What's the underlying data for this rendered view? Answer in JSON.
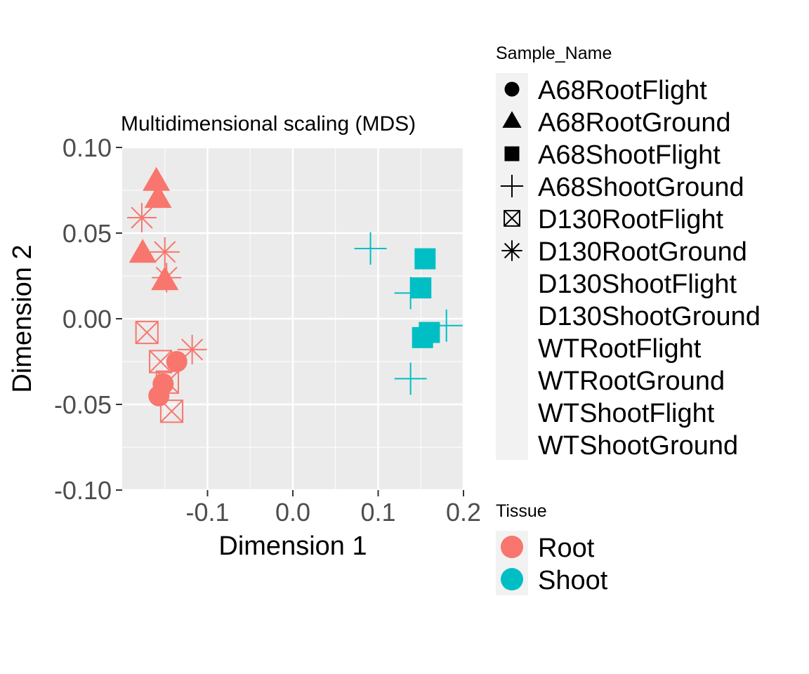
{
  "chart_data": {
    "type": "scatter",
    "title": "Multidimensional scaling (MDS)",
    "xlabel": "Dimension 1",
    "ylabel": "Dimension 2",
    "xlim": [
      -0.2,
      0.2
    ],
    "ylim": [
      -0.1,
      0.1
    ],
    "xticks": [
      "-0.1",
      "0.0",
      "0.1",
      "0.2"
    ],
    "yticks": [
      "0.10",
      "0.05",
      "0.00",
      "-0.05",
      "-0.10"
    ],
    "grid": true,
    "legend_position": "right",
    "colors": {
      "Root": "#F8766D",
      "Shoot": "#00BFC4",
      "panel": "#EBEBEB"
    },
    "legends": {
      "shape_title": "Sample_Name",
      "shape_items": [
        {
          "label": "A68RootFlight",
          "shape": "circle"
        },
        {
          "label": "A68RootGround",
          "shape": "triangle"
        },
        {
          "label": "A68ShootFlight",
          "shape": "square"
        },
        {
          "label": "A68ShootGround",
          "shape": "plus"
        },
        {
          "label": "D130RootFlight",
          "shape": "boxx"
        },
        {
          "label": "D130RootGround",
          "shape": "asterisk"
        },
        {
          "label": "D130ShootFlight",
          "shape": "none"
        },
        {
          "label": "D130ShootGround",
          "shape": "none"
        },
        {
          "label": "WTRootFlight",
          "shape": "none"
        },
        {
          "label": "WTRootGround",
          "shape": "none"
        },
        {
          "label": "WTShootFlight",
          "shape": "none"
        },
        {
          "label": "WTShootGround",
          "shape": "none"
        }
      ],
      "color_title": "Tissue",
      "color_items": [
        {
          "label": "Root",
          "color": "#F8766D"
        },
        {
          "label": "Shoot",
          "color": "#00BFC4"
        }
      ]
    },
    "points": [
      {
        "x": -0.16,
        "y": 0.08,
        "sample": "A68RootGround",
        "tissue": "Root",
        "shape": "triangle"
      },
      {
        "x": -0.158,
        "y": 0.07,
        "sample": "A68RootGround",
        "tissue": "Root",
        "shape": "triangle"
      },
      {
        "x": -0.176,
        "y": 0.038,
        "sample": "A68RootGround",
        "tissue": "Root",
        "shape": "triangle"
      },
      {
        "x": -0.15,
        "y": 0.022,
        "sample": "A68RootGround",
        "tissue": "Root",
        "shape": "triangle"
      },
      {
        "x": -0.177,
        "y": 0.059,
        "sample": "D130RootGround",
        "tissue": "Root",
        "shape": "asterisk"
      },
      {
        "x": -0.15,
        "y": 0.039,
        "sample": "D130RootGround",
        "tissue": "Root",
        "shape": "asterisk"
      },
      {
        "x": -0.148,
        "y": 0.024,
        "sample": "D130RootGround",
        "tissue": "Root",
        "shape": "asterisk"
      },
      {
        "x": -0.118,
        "y": -0.018,
        "sample": "D130RootGround",
        "tissue": "Root",
        "shape": "asterisk"
      },
      {
        "x": -0.171,
        "y": -0.008,
        "sample": "D130RootFlight",
        "tissue": "Root",
        "shape": "boxx"
      },
      {
        "x": -0.155,
        "y": -0.025,
        "sample": "D130RootFlight",
        "tissue": "Root",
        "shape": "boxx"
      },
      {
        "x": -0.147,
        "y": -0.037,
        "sample": "D130RootFlight",
        "tissue": "Root",
        "shape": "boxx"
      },
      {
        "x": -0.142,
        "y": -0.054,
        "sample": "D130RootFlight",
        "tissue": "Root",
        "shape": "boxx"
      },
      {
        "x": -0.136,
        "y": -0.025,
        "sample": "A68RootFlight",
        "tissue": "Root",
        "shape": "circle"
      },
      {
        "x": -0.152,
        "y": -0.038,
        "sample": "A68RootFlight",
        "tissue": "Root",
        "shape": "circle"
      },
      {
        "x": -0.157,
        "y": -0.045,
        "sample": "A68RootFlight",
        "tissue": "Root",
        "shape": "circle"
      },
      {
        "x": 0.155,
        "y": 0.035,
        "sample": "A68ShootFlight",
        "tissue": "Shoot",
        "shape": "square"
      },
      {
        "x": 0.15,
        "y": 0.018,
        "sample": "A68ShootFlight",
        "tissue": "Shoot",
        "shape": "square"
      },
      {
        "x": 0.16,
        "y": -0.008,
        "sample": "A68ShootFlight",
        "tissue": "Shoot",
        "shape": "square"
      },
      {
        "x": 0.152,
        "y": -0.011,
        "sample": "A68ShootFlight",
        "tissue": "Shoot",
        "shape": "square"
      },
      {
        "x": 0.091,
        "y": 0.041,
        "sample": "A68ShootGround",
        "tissue": "Shoot",
        "shape": "plus"
      },
      {
        "x": 0.138,
        "y": 0.015,
        "sample": "A68ShootGround",
        "tissue": "Shoot",
        "shape": "plus"
      },
      {
        "x": 0.18,
        "y": -0.004,
        "sample": "A68ShootGround",
        "tissue": "Shoot",
        "shape": "plus"
      },
      {
        "x": 0.138,
        "y": -0.035,
        "sample": "A68ShootGround",
        "tissue": "Shoot",
        "shape": "plus"
      }
    ]
  }
}
